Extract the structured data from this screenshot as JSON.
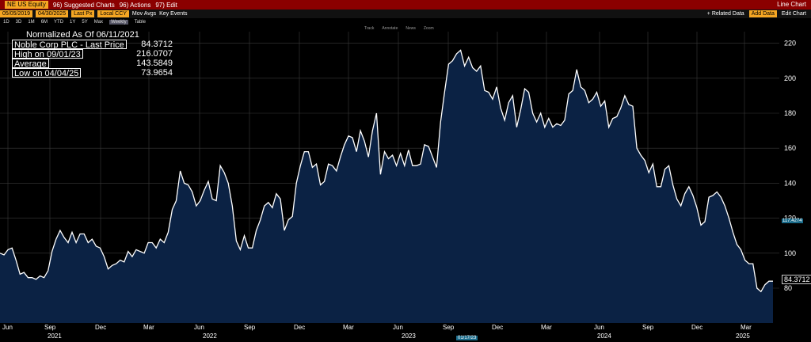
{
  "topbar": {
    "ticker": "NE US Equity",
    "suggested": "96) Suggested Charts",
    "actions": "96) Actions",
    "edit": "97) Edit",
    "right_title": "Line Chart"
  },
  "toolbar": {
    "start_date": "05/05/2019",
    "end_date": "04/30/2025",
    "field": "Last Px",
    "currency": "Local CCY",
    "mov_avgs": "Mov Avgs",
    "key_events": "Key Events",
    "related_data": "+ Related Data",
    "add_data": "Add Data",
    "edit_chart": "Edit Chart"
  },
  "periods": [
    "1D",
    "3D",
    "1M",
    "6M",
    "YTD",
    "1Y",
    "5Y",
    "Max",
    "Weekly",
    "Table"
  ],
  "tools": [
    "Track",
    "Annotate",
    "News",
    "Zoom"
  ],
  "legend": {
    "title": "Normalized As Of 06/11/2021",
    "rows": [
      {
        "label": "Noble Corp PLC - Last Price",
        "value": "84.3712"
      },
      {
        "label": "High on 09/01/23",
        "value": "216.0707"
      },
      {
        "label": "Average",
        "value": "143.5849"
      },
      {
        "label": "Low on 04/04/25",
        "value": "73.9654"
      }
    ]
  },
  "last_value_label": "84.3712",
  "axis_marker": "117.4274",
  "date_marker": "01/17/23",
  "chart_data": {
    "type": "area",
    "series": [
      {
        "name": "Noble Corp PLC - Last Price",
        "values": [
          100,
          99,
          102,
          103,
          96,
          88,
          89,
          86,
          86,
          85,
          87,
          86,
          90,
          101,
          108,
          113,
          109,
          106,
          112,
          106,
          111,
          111,
          106,
          108,
          104,
          103,
          98,
          91,
          93,
          94,
          96,
          95,
          101,
          98,
          102,
          101,
          100,
          106,
          106,
          103,
          108,
          106,
          112,
          125,
          130,
          147,
          140,
          139,
          135,
          127,
          130,
          136,
          141,
          131,
          130,
          150,
          146,
          140,
          127,
          107,
          102,
          110,
          103,
          103,
          113,
          119,
          127,
          129,
          126,
          134,
          131,
          113,
          119,
          121,
          140,
          150,
          158,
          158,
          149,
          151,
          139,
          141,
          151,
          150,
          147,
          155,
          162,
          167,
          166,
          158,
          170,
          164,
          155,
          170,
          180,
          145,
          158,
          154,
          156,
          150,
          157,
          150,
          159,
          150,
          150,
          151,
          162,
          161,
          155,
          149,
          175,
          192,
          208,
          210,
          214,
          216,
          207,
          212,
          206,
          204,
          207,
          193,
          192,
          188,
          195,
          183,
          176,
          186,
          190,
          172,
          182,
          194,
          192,
          180,
          175,
          180,
          172,
          177,
          172,
          174,
          173,
          176,
          191,
          193,
          205,
          195,
          193,
          186,
          188,
          192,
          184,
          187,
          172,
          177,
          178,
          183,
          190,
          185,
          184,
          160,
          156,
          153,
          146,
          151,
          138,
          138,
          148,
          150,
          139,
          131,
          127,
          134,
          138,
          133,
          126,
          116,
          118,
          132,
          133,
          135,
          132,
          127,
          120,
          112,
          105,
          102,
          96,
          94,
          94,
          80,
          78,
          82,
          84,
          84
        ]
      }
    ],
    "y_ticks": [
      80,
      100,
      120,
      140,
      160,
      180,
      200,
      220
    ],
    "ylim": [
      70,
      226
    ],
    "x_month_labels": [
      "Jun",
      "Sep",
      "Dec",
      "Mar",
      "Jun",
      "Sep",
      "Dec",
      "Mar",
      "Jun",
      "Sep",
      "Dec",
      "Mar",
      "Jun",
      "Sep",
      "Dec",
      "Mar"
    ],
    "x_year_labels": [
      "2021",
      "2022",
      "2023",
      "2024",
      "2025"
    ],
    "grid": true,
    "legend_placement": "top-left"
  },
  "colors": {
    "line": "#ffffff",
    "fill": "#0b2244",
    "grid": "#3a3a3a",
    "accent_orange": "#f5a623",
    "topbar_red": "#8b0000"
  }
}
